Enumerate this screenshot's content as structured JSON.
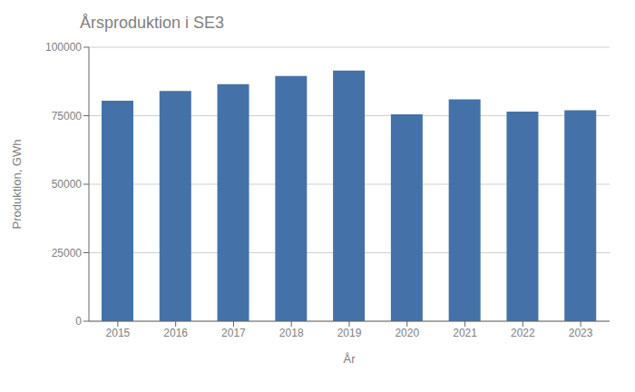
{
  "chart_data": {
    "type": "bar",
    "title": "Årsproduktion i SE3",
    "xlabel": "År",
    "ylabel": "Produktion, GWh",
    "categories": [
      "2015",
      "2016",
      "2017",
      "2018",
      "2019",
      "2020",
      "2021",
      "2022",
      "2023"
    ],
    "values": [
      80500,
      84000,
      86500,
      89500,
      91500,
      75500,
      81000,
      76500,
      77000
    ],
    "color": "#4472a8",
    "ylim": [
      0,
      100000
    ],
    "yticks": [
      0,
      25000,
      50000,
      75000,
      100000
    ],
    "grid": true
  }
}
